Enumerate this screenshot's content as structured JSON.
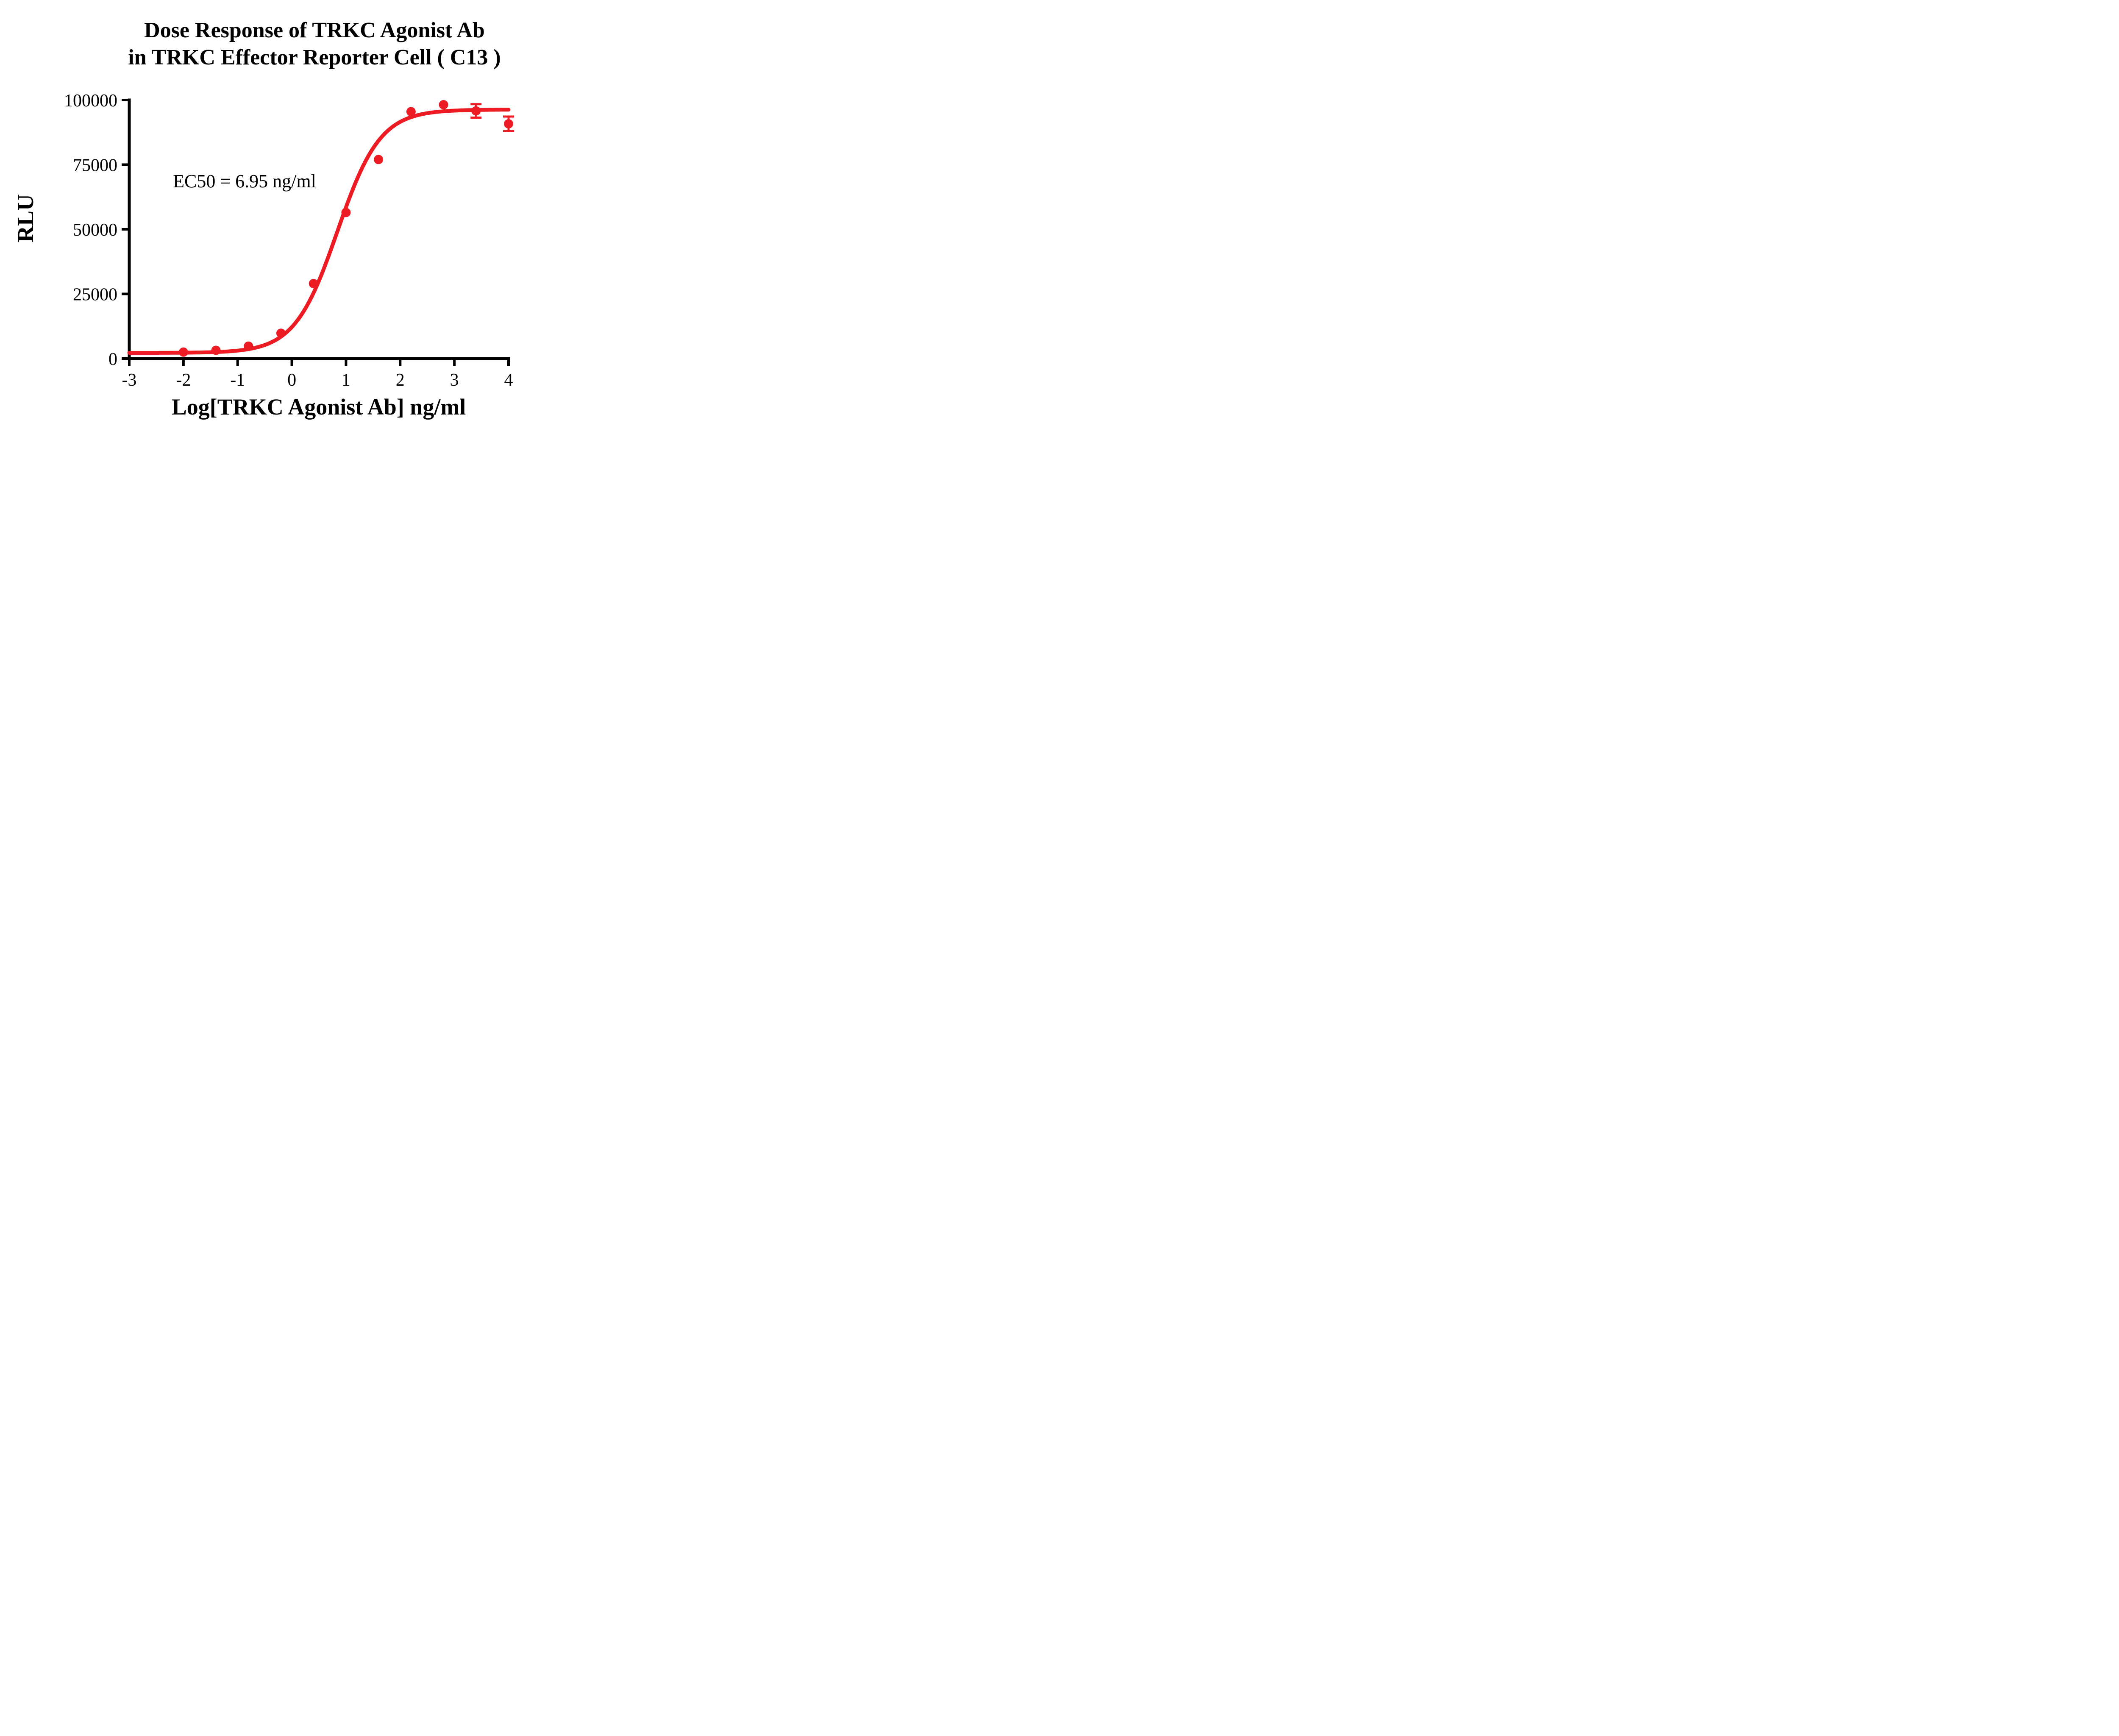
{
  "title": {
    "line1": "Dose Response of TRKC Agonist Ab",
    "line2": "in TRKC Effector Reporter Cell ( C13 )"
  },
  "annotation": "EC50 = 6.95 ng/ml",
  "chart_data": {
    "type": "scatter",
    "title": "Dose Response of TRKC Agonist Ab in TRKC Effector Reporter Cell (C13)",
    "xlabel": "Log[TRKC Agonist Ab] ng/ml",
    "ylabel": "RLU",
    "xlim": [
      -3,
      4
    ],
    "ylim": [
      0,
      100000
    ],
    "xticks": [
      -3,
      -2,
      -1,
      0,
      1,
      2,
      3,
      4
    ],
    "yticks": [
      0,
      25000,
      50000,
      75000,
      100000
    ],
    "x": [
      -2.0,
      -1.4,
      -0.8,
      -0.2,
      0.4,
      1.0,
      1.6,
      2.2,
      2.8,
      3.4,
      4.0
    ],
    "y": [
      2500,
      3200,
      4800,
      9800,
      29000,
      56500,
      77000,
      95500,
      98200,
      95800,
      90800
    ],
    "error": [
      0,
      0,
      0,
      0,
      0,
      0,
      0,
      0,
      0,
      2600,
      2800
    ],
    "fit": {
      "model": "4PL-sigmoid",
      "bottom": 2200,
      "top": 96300,
      "logEC50": 0.842,
      "ec50_ng_ml": 6.95,
      "hill": 1.1
    },
    "color": "#ed1c24",
    "grid": "off",
    "legend": "none"
  }
}
